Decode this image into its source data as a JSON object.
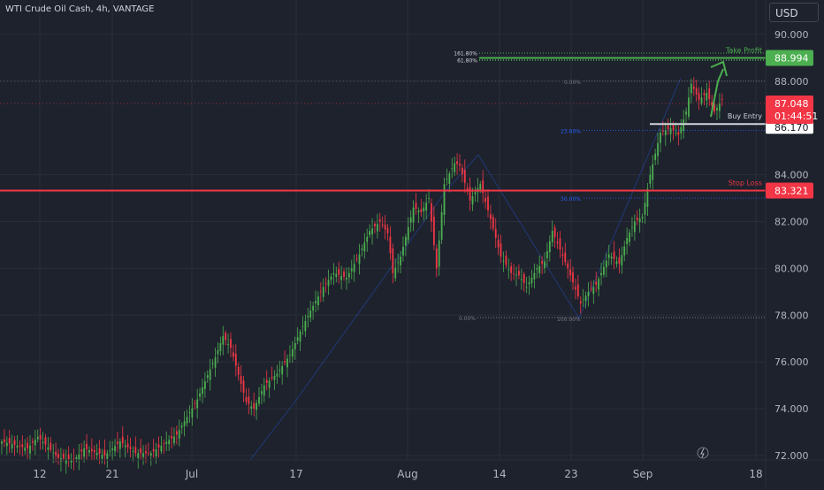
{
  "header": {
    "symbol_title": "WTI Crude Oil Cash, 4h, VANTAGE",
    "currency": "USD"
  },
  "chart_data": {
    "type": "candlestick",
    "title": "WTI Crude Oil Cash, 4h, VANTAGE",
    "ylim": [
      71.85,
      91.1
    ],
    "y_ticks": [
      "90.000",
      "88.000",
      "84.000",
      "82.000",
      "80.000",
      "78.000",
      "76.000",
      "74.000",
      "72.000"
    ],
    "y_tick_values": [
      90,
      88,
      84,
      82,
      80,
      78,
      76,
      74,
      72
    ],
    "x_ticks": [
      "12",
      "21",
      "Jul",
      "17",
      "Aug",
      "14",
      "23",
      "Sep",
      "18"
    ],
    "grid": true,
    "colors": {
      "up": "#4caf50",
      "down": "#f23645",
      "background": "#1e222d",
      "grid": "#2a2e39",
      "text": "#b2b5be",
      "fib": "#2962ff"
    },
    "series": [
      {
        "name": "WTI Crude Oil Cash",
        "close_waypoints": [
          [
            0,
            72.6
          ],
          [
            10,
            72.3
          ],
          [
            14,
            72.8
          ],
          [
            22,
            71.9
          ],
          [
            28,
            71.8
          ],
          [
            32,
            72.3
          ],
          [
            40,
            72.0
          ],
          [
            46,
            72.6
          ],
          [
            52,
            72.1
          ],
          [
            58,
            72.1
          ],
          [
            68,
            72.9
          ],
          [
            76,
            74.4
          ],
          [
            83,
            76.2
          ],
          [
            86,
            77.1
          ],
          [
            89,
            76.6
          ],
          [
            95,
            74.3
          ],
          [
            98,
            74.0
          ],
          [
            102,
            75.0
          ],
          [
            107,
            75.5
          ],
          [
            112,
            76.3
          ],
          [
            116,
            77.3
          ],
          [
            120,
            78.2
          ],
          [
            125,
            79.2
          ],
          [
            129,
            79.8
          ],
          [
            134,
            79.6
          ],
          [
            139,
            80.6
          ],
          [
            143,
            81.6
          ],
          [
            147,
            82.0
          ],
          [
            150,
            81.5
          ],
          [
            152,
            79.8
          ],
          [
            155,
            80.5
          ],
          [
            160,
            82.6
          ],
          [
            163,
            82.4
          ],
          [
            166,
            83.0
          ],
          [
            169,
            80.0
          ],
          [
            172,
            83.6
          ],
          [
            176,
            84.5
          ],
          [
            178,
            84.4
          ],
          [
            182,
            82.9
          ],
          [
            186,
            83.6
          ],
          [
            190,
            82.1
          ],
          [
            194,
            80.5
          ],
          [
            198,
            79.8
          ],
          [
            201,
            79.7
          ],
          [
            204,
            79.2
          ],
          [
            208,
            80.0
          ],
          [
            211,
            80.3
          ],
          [
            214,
            81.6
          ],
          [
            217,
            80.8
          ],
          [
            220,
            80.0
          ],
          [
            225,
            78.5
          ],
          [
            228,
            79.0
          ],
          [
            231,
            79.3
          ],
          [
            233,
            79.8
          ],
          [
            236,
            80.6
          ],
          [
            240,
            80.2
          ],
          [
            243,
            81.3
          ],
          [
            246,
            82.0
          ],
          [
            249,
            82.2
          ],
          [
            252,
            84.0
          ],
          [
            256,
            85.8
          ],
          [
            260,
            86.0
          ],
          [
            263,
            85.7
          ],
          [
            266,
            86.7
          ],
          [
            268,
            87.9
          ],
          [
            271,
            87.2
          ],
          [
            274,
            87.5
          ],
          [
            277,
            86.7
          ],
          [
            280,
            87.2
          ]
        ]
      }
    ],
    "levels": {
      "take_profit": {
        "label": "Take Profit",
        "value": 88.994,
        "price_label": "88.994",
        "color": "#4caf50"
      },
      "stop_loss": {
        "label": "Stop Loss",
        "value": 83.321,
        "price_label": "83.321",
        "color": "#f23645"
      },
      "buy_entry": {
        "label": "Buy Entry",
        "value": 86.17,
        "price_label": "86.170",
        "color": "#d1d4dc"
      },
      "current_price": {
        "value": 87.048,
        "price_label": "87.048",
        "countdown": "01:44:51",
        "color": "#f23645"
      }
    },
    "fib_extension_labels": [
      "161.80%",
      "61.80%"
    ],
    "fib_extension_values": [
      89.2,
      88.9
    ],
    "fib_retracement_labels": [
      "0.00%",
      "23.60%",
      "50.00%"
    ],
    "fib_retracement_values": [
      88.0,
      85.9,
      83.0
    ],
    "fib_swing_labels": [
      "0.00%",
      "100.00%"
    ],
    "fib_swing_value": 77.9
  }
}
